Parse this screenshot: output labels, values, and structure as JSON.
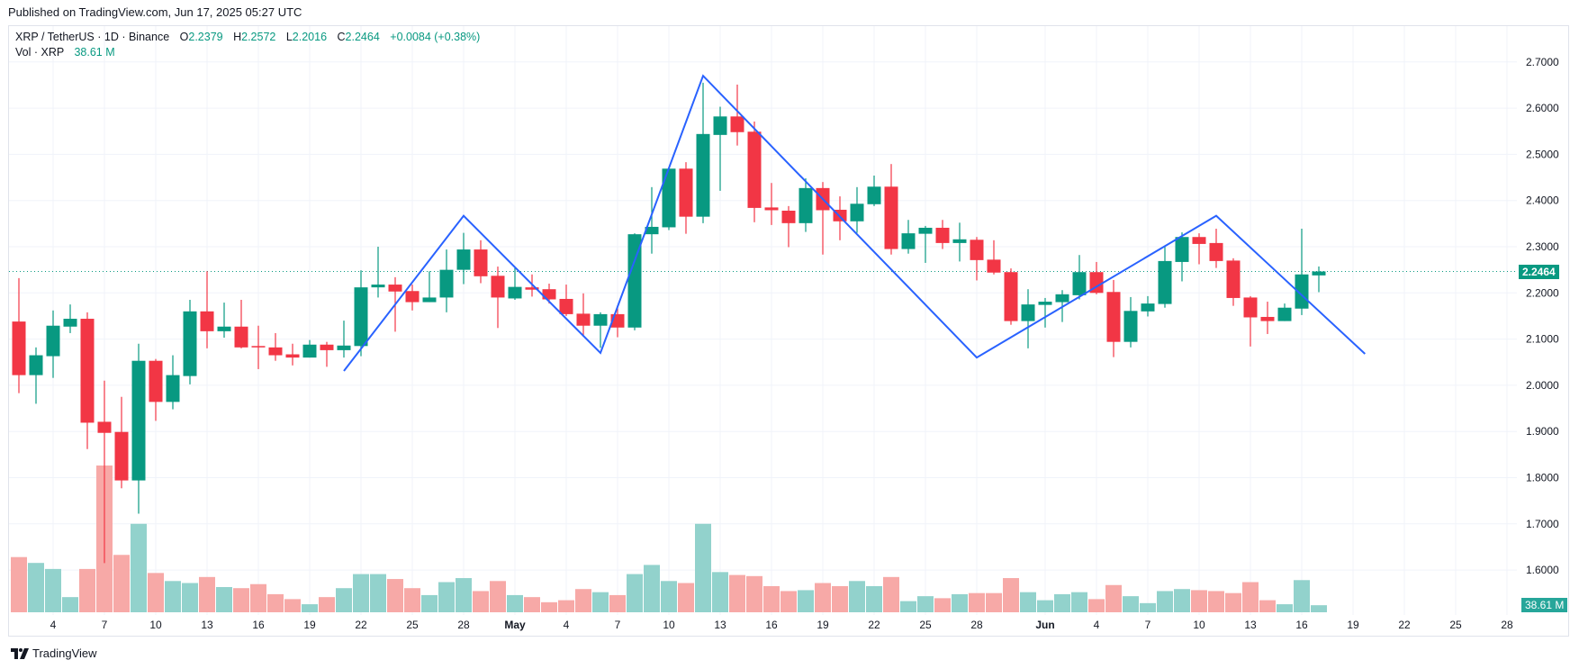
{
  "published": "Published on TradingView.com, Jun 17, 2025 05:27 UTC",
  "legend": {
    "symbol": "XRP / TetherUS · 1D · Binance",
    "o_label": "O",
    "o": "2.2379",
    "h_label": "H",
    "h": "2.2572",
    "l_label": "L",
    "l": "2.2016",
    "c_label": "C",
    "c": "2.2464",
    "change": "+0.0084 (+0.38%)",
    "vol_label": "Vol · XRP",
    "vol": "38.61 M"
  },
  "last_price_badge": "2.2464",
  "last_volume_badge": "38.61 M",
  "logo_text": "TradingView",
  "colors": {
    "up": "#089981",
    "down": "#F23645",
    "vol_up": "#92D2CC",
    "vol_down": "#F7A9A7",
    "drawing": "#2962FF",
    "grid": "#f0f3fa"
  },
  "chart_data": {
    "type": "candlestick",
    "title": "XRP / TetherUS · 1D · Binance",
    "x_start": "2025-04-02",
    "x_end": "2025-06-17",
    "ylim": [
      1.58,
      2.72
    ],
    "price_ticks": [
      "2.7000",
      "2.6000",
      "2.5000",
      "2.4000",
      "2.3000",
      "2.2000",
      "2.1000",
      "2.0000",
      "1.9000",
      "1.8000",
      "1.7000",
      "1.6000"
    ],
    "date_ticks": [
      {
        "day": 2,
        "label": "4"
      },
      {
        "day": 5,
        "label": "7"
      },
      {
        "day": 8,
        "label": "10"
      },
      {
        "day": 11,
        "label": "13"
      },
      {
        "day": 14,
        "label": "16"
      },
      {
        "day": 17,
        "label": "19"
      },
      {
        "day": 20,
        "label": "22"
      },
      {
        "day": 23,
        "label": "25"
      },
      {
        "day": 26,
        "label": "28"
      },
      {
        "day": 29,
        "label": "May"
      },
      {
        "day": 32,
        "label": "4"
      },
      {
        "day": 35,
        "label": "7"
      },
      {
        "day": 38,
        "label": "10"
      },
      {
        "day": 41,
        "label": "13"
      },
      {
        "day": 44,
        "label": "16"
      },
      {
        "day": 47,
        "label": "19"
      },
      {
        "day": 50,
        "label": "22"
      },
      {
        "day": 53,
        "label": "25"
      },
      {
        "day": 56,
        "label": "28"
      },
      {
        "day": 60,
        "label": "Jun"
      },
      {
        "day": 63,
        "label": "4"
      },
      {
        "day": 66,
        "label": "7"
      },
      {
        "day": 69,
        "label": "10"
      },
      {
        "day": 72,
        "label": "13"
      },
      {
        "day": 75,
        "label": "16"
      },
      {
        "day": 78,
        "label": "19"
      },
      {
        "day": 81,
        "label": "22"
      },
      {
        "day": 84,
        "label": "25"
      },
      {
        "day": 87,
        "label": "28"
      }
    ],
    "ohlc_columns": [
      "open",
      "high",
      "low",
      "close",
      "volume_M"
    ],
    "ohlc": [
      [
        2.138,
        2.232,
        1.983,
        2.022,
        302
      ],
      [
        2.022,
        2.082,
        1.96,
        2.065,
        270
      ],
      [
        2.063,
        2.162,
        2.016,
        2.129,
        237
      ],
      [
        2.127,
        2.175,
        2.113,
        2.144,
        83
      ],
      [
        2.144,
        2.158,
        1.862,
        1.919,
        237
      ],
      [
        1.921,
        2.01,
        1.615,
        1.897,
        803
      ],
      [
        1.899,
        1.975,
        1.777,
        1.794,
        314
      ],
      [
        1.794,
        2.09,
        1.722,
        2.053,
        484
      ],
      [
        2.053,
        2.057,
        1.923,
        1.964,
        215
      ],
      [
        1.964,
        2.065,
        1.948,
        2.022,
        171
      ],
      [
        2.02,
        2.185,
        2.002,
        2.16,
        160
      ],
      [
        2.16,
        2.247,
        2.08,
        2.117,
        193
      ],
      [
        2.117,
        2.179,
        2.103,
        2.127,
        138
      ],
      [
        2.127,
        2.185,
        2.08,
        2.082,
        132
      ],
      [
        2.085,
        2.129,
        2.035,
        2.082,
        154
      ],
      [
        2.082,
        2.113,
        2.053,
        2.065,
        99
      ],
      [
        2.067,
        2.09,
        2.043,
        2.06,
        72
      ],
      [
        2.06,
        2.098,
        2.06,
        2.088,
        44
      ],
      [
        2.088,
        2.094,
        2.04,
        2.076,
        83
      ],
      [
        2.076,
        2.14,
        2.06,
        2.086,
        132
      ],
      [
        2.085,
        2.249,
        2.063,
        2.212,
        209
      ],
      [
        2.212,
        2.3,
        2.19,
        2.218,
        209
      ],
      [
        2.218,
        2.234,
        2.116,
        2.203,
        182
      ],
      [
        2.204,
        2.218,
        2.162,
        2.18,
        132
      ],
      [
        2.18,
        2.247,
        2.18,
        2.19,
        94
      ],
      [
        2.19,
        2.294,
        2.158,
        2.25,
        165
      ],
      [
        2.25,
        2.33,
        2.219,
        2.294,
        187
      ],
      [
        2.294,
        2.314,
        2.221,
        2.236,
        116
      ],
      [
        2.237,
        2.257,
        2.124,
        2.19,
        171
      ],
      [
        2.188,
        2.255,
        2.185,
        2.213,
        94
      ],
      [
        2.212,
        2.24,
        2.192,
        2.207,
        83
      ],
      [
        2.208,
        2.22,
        2.177,
        2.186,
        55
      ],
      [
        2.187,
        2.218,
        2.15,
        2.154,
        66
      ],
      [
        2.155,
        2.199,
        2.105,
        2.129,
        127
      ],
      [
        2.129,
        2.158,
        2.081,
        2.154,
        110
      ],
      [
        2.154,
        2.173,
        2.104,
        2.125,
        94
      ],
      [
        2.125,
        2.329,
        2.119,
        2.327,
        209
      ],
      [
        2.327,
        2.429,
        2.285,
        2.343,
        259
      ],
      [
        2.342,
        2.47,
        2.336,
        2.469,
        171
      ],
      [
        2.469,
        2.483,
        2.328,
        2.365,
        160
      ],
      [
        2.365,
        2.655,
        2.351,
        2.544,
        484
      ],
      [
        2.542,
        2.603,
        2.421,
        2.582,
        220
      ],
      [
        2.582,
        2.651,
        2.519,
        2.548,
        204
      ],
      [
        2.549,
        2.571,
        2.353,
        2.384,
        198
      ],
      [
        2.385,
        2.438,
        2.347,
        2.379,
        143
      ],
      [
        2.378,
        2.388,
        2.299,
        2.351,
        116
      ],
      [
        2.351,
        2.448,
        2.332,
        2.427,
        121
      ],
      [
        2.427,
        2.44,
        2.283,
        2.379,
        160
      ],
      [
        2.38,
        2.409,
        2.314,
        2.355,
        143
      ],
      [
        2.355,
        2.429,
        2.33,
        2.393,
        171
      ],
      [
        2.392,
        2.454,
        2.388,
        2.43,
        143
      ],
      [
        2.43,
        2.479,
        2.283,
        2.295,
        193
      ],
      [
        2.295,
        2.358,
        2.285,
        2.329,
        61
      ],
      [
        2.328,
        2.345,
        2.265,
        2.341,
        88
      ],
      [
        2.341,
        2.358,
        2.295,
        2.308,
        77
      ],
      [
        2.308,
        2.352,
        2.268,
        2.316,
        99
      ],
      [
        2.315,
        2.321,
        2.227,
        2.271,
        105
      ],
      [
        2.272,
        2.314,
        2.24,
        2.244,
        105
      ],
      [
        2.245,
        2.253,
        2.131,
        2.139,
        187
      ],
      [
        2.139,
        2.208,
        2.08,
        2.175,
        110
      ],
      [
        2.174,
        2.189,
        2.125,
        2.181,
        66
      ],
      [
        2.18,
        2.206,
        2.137,
        2.197,
        99
      ],
      [
        2.195,
        2.282,
        2.186,
        2.245,
        110
      ],
      [
        2.245,
        2.267,
        2.197,
        2.2,
        72
      ],
      [
        2.202,
        2.228,
        2.061,
        2.094,
        149
      ],
      [
        2.094,
        2.191,
        2.082,
        2.161,
        88
      ],
      [
        2.16,
        2.193,
        2.149,
        2.177,
        50
      ],
      [
        2.176,
        2.3,
        2.168,
        2.269,
        116
      ],
      [
        2.267,
        2.331,
        2.225,
        2.321,
        127
      ],
      [
        2.321,
        2.329,
        2.262,
        2.306,
        121
      ],
      [
        2.308,
        2.339,
        2.254,
        2.269,
        116
      ],
      [
        2.27,
        2.275,
        2.172,
        2.189,
        105
      ],
      [
        2.19,
        2.193,
        2.084,
        2.147,
        165
      ],
      [
        2.148,
        2.181,
        2.111,
        2.139,
        66
      ],
      [
        2.139,
        2.177,
        2.139,
        2.168,
        44
      ],
      [
        2.166,
        2.339,
        2.152,
        2.24,
        176
      ],
      [
        2.2379,
        2.2572,
        2.2016,
        2.2464,
        38.61
      ]
    ],
    "last_price": 2.2464,
    "zigzag_drawing": [
      [
        19,
        2.031
      ],
      [
        26,
        2.367
      ],
      [
        34,
        2.07
      ],
      [
        40,
        2.67
      ],
      [
        56,
        2.06
      ],
      [
        70,
        2.367
      ],
      [
        78.7,
        2.068
      ]
    ]
  }
}
